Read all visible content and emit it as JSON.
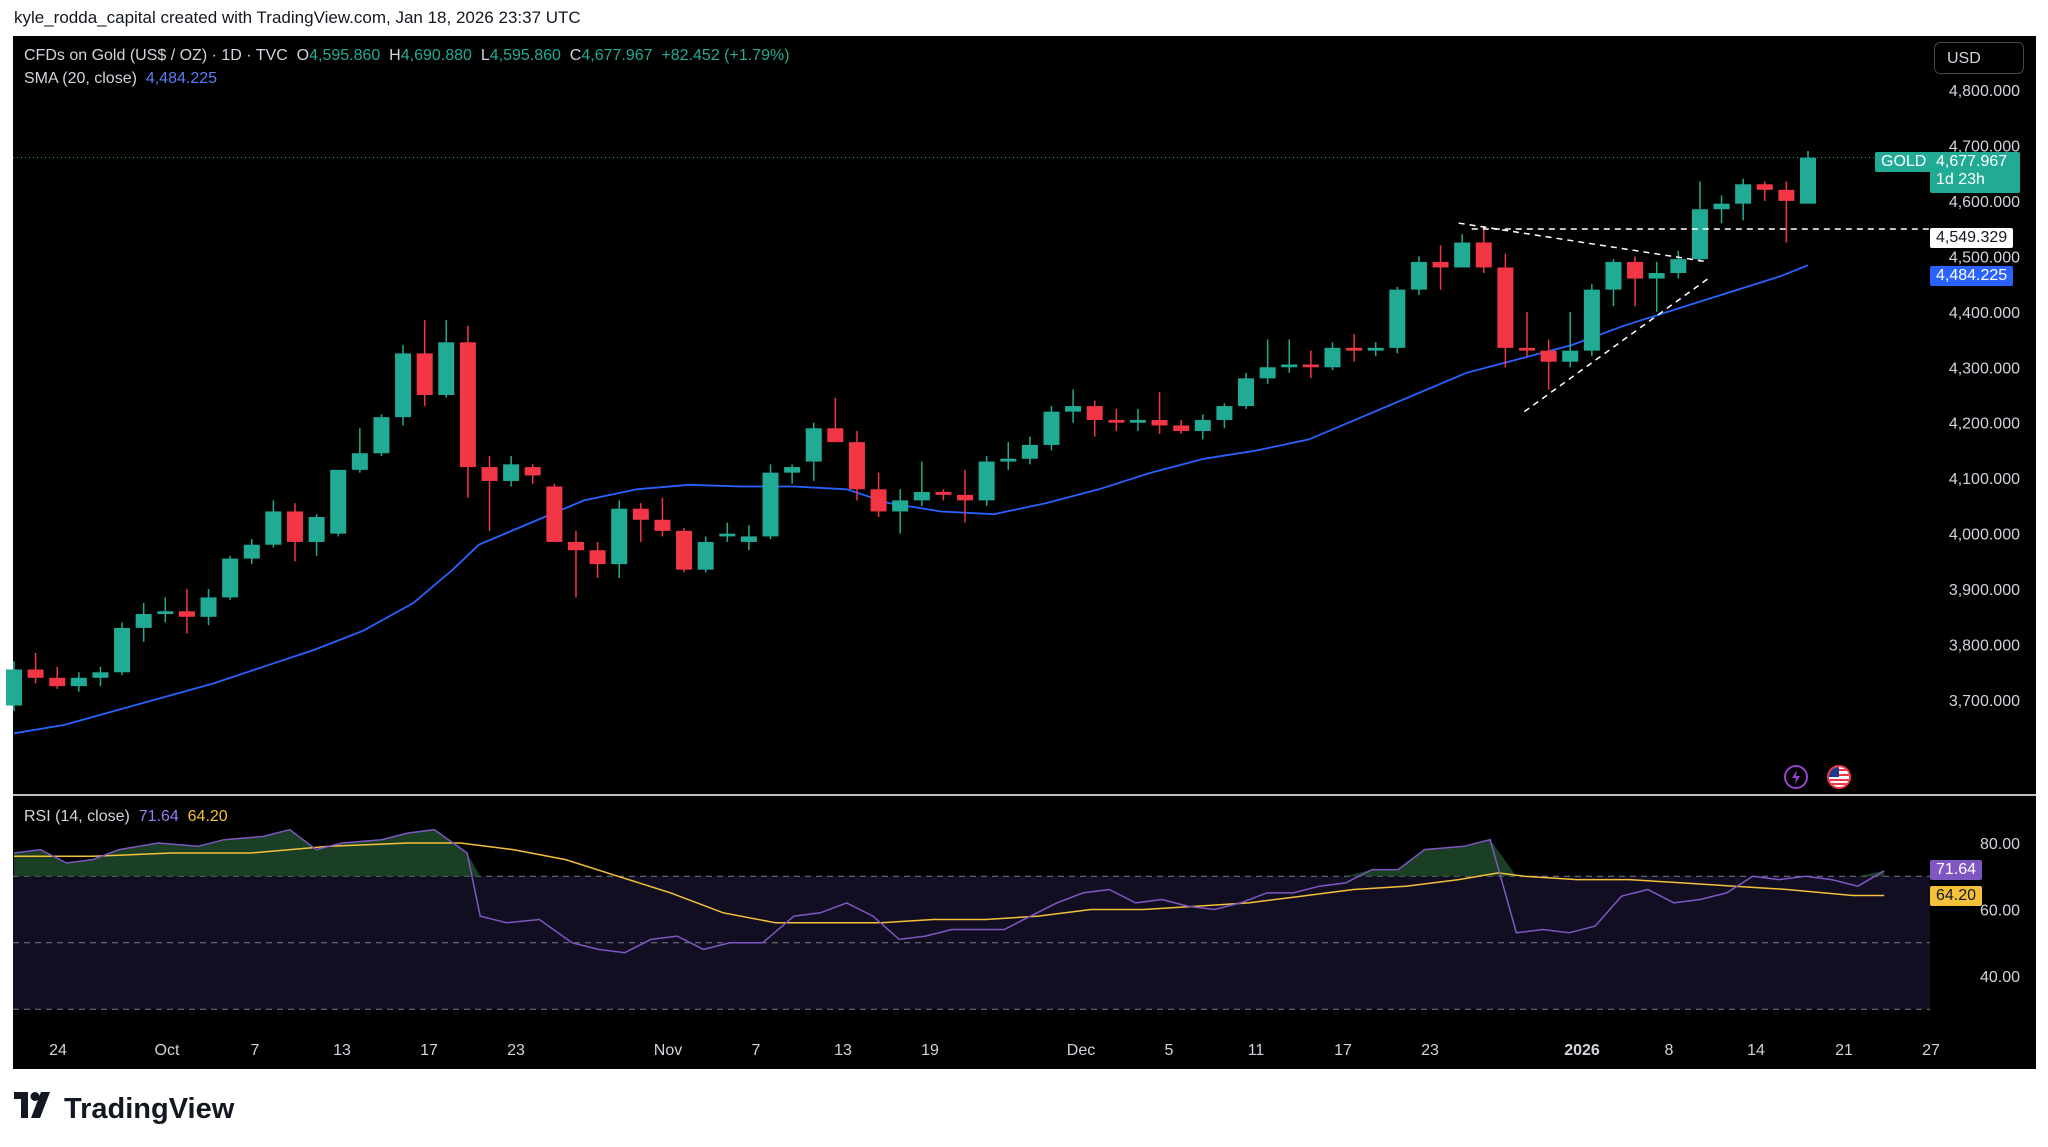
{
  "credit": "kyle_rodda_capital created with TradingView.com, Jan 18, 2026 23:37 UTC",
  "currency_button": "USD",
  "legend": {
    "symbol": "CFDs on Gold (US$ / OZ) · 1D · TVC",
    "o_label": "O",
    "o_value": "4,595.860",
    "h_label": "H",
    "h_value": "4,690.880",
    "l_label": "L",
    "l_value": "4,595.860",
    "c_label": "C",
    "c_value": "4,677.967",
    "change": "+82.452 (+1.79%)",
    "sma_label": "SMA (20, close)",
    "sma_value": "4,484.225",
    "rsi_label": "RSI (14, close)",
    "rsi_value": "71.64",
    "rsi_ma_value": "64.20"
  },
  "tags": {
    "gold_label": "GOLD",
    "gold_price": "4,677.967",
    "countdown": "1d 23h",
    "level_price": "4,549.329",
    "sma_price": "4,484.225",
    "rsi_value": "71.64",
    "rsi_ma_value": "64.20"
  },
  "icons": {
    "flash": "lightning-icon",
    "flag": "us-flag-icon"
  },
  "logo": {
    "wordmark": "TradingView",
    "mark": "tradingview-logo-icon"
  },
  "colors": {
    "up": "#22ab94",
    "down": "#f23645",
    "sma": "#2962ff",
    "rsi": "#7e57c2",
    "rsi_ma": "#f5c03a"
  },
  "chart_data": [
    {
      "type": "candlestick",
      "title": "",
      "price_axis_ticks": [
        "4,800.000",
        "4,700.000",
        "4,600.000",
        "4,500.000",
        "4,400.000",
        "4,300.000",
        "4,200.000",
        "4,100.000",
        "4,000.000",
        "3,900.000",
        "3,800.000",
        "3,700.000"
      ],
      "x_tick_labels": [
        "24",
        "Oct",
        "7",
        "13",
        "17",
        "23",
        "Nov",
        "7",
        "13",
        "19",
        "Dec",
        "5",
        "11",
        "17",
        "23",
        "2026",
        "8",
        "14",
        "21",
        "27"
      ],
      "ylim": [
        3630,
        4830
      ],
      "candles": [
        [
          3690,
          3770,
          3680,
          3755
        ],
        [
          3755,
          3785,
          3730,
          3740
        ],
        [
          3740,
          3760,
          3720,
          3725
        ],
        [
          3725,
          3750,
          3715,
          3740
        ],
        [
          3740,
          3760,
          3725,
          3750
        ],
        [
          3750,
          3840,
          3745,
          3830
        ],
        [
          3830,
          3875,
          3805,
          3855
        ],
        [
          3855,
          3885,
          3840,
          3860
        ],
        [
          3860,
          3900,
          3820,
          3850
        ],
        [
          3850,
          3900,
          3835,
          3885
        ],
        [
          3885,
          3960,
          3880,
          3955
        ],
        [
          3955,
          3990,
          3945,
          3980
        ],
        [
          3980,
          4060,
          3975,
          4040
        ],
        [
          4040,
          4055,
          3950,
          3985
        ],
        [
          3985,
          4035,
          3960,
          4030
        ],
        [
          4000,
          4110,
          3995,
          4115
        ],
        [
          4115,
          4190,
          4110,
          4145
        ],
        [
          4145,
          4215,
          4140,
          4210
        ],
        [
          4210,
          4340,
          4195,
          4325
        ],
        [
          4325,
          4385,
          4230,
          4250
        ],
        [
          4250,
          4385,
          4245,
          4345
        ],
        [
          4345,
          4375,
          4065,
          4120
        ],
        [
          4120,
          4140,
          4005,
          4095
        ],
        [
          4095,
          4140,
          4085,
          4125
        ],
        [
          4120,
          4125,
          4090,
          4105
        ],
        [
          4085,
          4090,
          3985,
          3985
        ],
        [
          3985,
          4005,
          3885,
          3970
        ],
        [
          3970,
          3985,
          3920,
          3945
        ],
        [
          3945,
          4060,
          3920,
          4045
        ],
        [
          4045,
          4055,
          3985,
          4025
        ],
        [
          4025,
          4065,
          3995,
          4005
        ],
        [
          4005,
          4010,
          3930,
          3935
        ],
        [
          3935,
          3995,
          3930,
          3985
        ],
        [
          3995,
          4020,
          3985,
          4000
        ],
        [
          3985,
          4015,
          3970,
          3995
        ],
        [
          3995,
          4125,
          3990,
          4110
        ],
        [
          4110,
          4125,
          4090,
          4120
        ],
        [
          4130,
          4200,
          4095,
          4190
        ],
        [
          4190,
          4245,
          4170,
          4165
        ],
        [
          4165,
          4185,
          4060,
          4080
        ],
        [
          4080,
          4110,
          4030,
          4040
        ],
        [
          4040,
          4080,
          4000,
          4060
        ],
        [
          4060,
          4130,
          4050,
          4075
        ],
        [
          4075,
          4080,
          4060,
          4070
        ],
        [
          4070,
          4115,
          4020,
          4060
        ],
        [
          4060,
          4140,
          4050,
          4130
        ],
        [
          4130,
          4165,
          4115,
          4135
        ],
        [
          4135,
          4175,
          4125,
          4160
        ],
        [
          4160,
          4230,
          4150,
          4220
        ],
        [
          4220,
          4260,
          4200,
          4230
        ],
        [
          4230,
          4240,
          4175,
          4205
        ],
        [
          4205,
          4225,
          4185,
          4200
        ],
        [
          4200,
          4225,
          4185,
          4205
        ],
        [
          4205,
          4255,
          4180,
          4195
        ],
        [
          4195,
          4205,
          4180,
          4185
        ],
        [
          4185,
          4215,
          4170,
          4205
        ],
        [
          4205,
          4235,
          4190,
          4230
        ],
        [
          4230,
          4290,
          4225,
          4280
        ],
        [
          4280,
          4350,
          4270,
          4300
        ],
        [
          4300,
          4350,
          4290,
          4305
        ],
        [
          4305,
          4330,
          4280,
          4300
        ],
        [
          4300,
          4345,
          4295,
          4335
        ],
        [
          4335,
          4360,
          4310,
          4330
        ],
        [
          4330,
          4345,
          4320,
          4335
        ],
        [
          4335,
          4445,
          4325,
          4440
        ],
        [
          4440,
          4500,
          4430,
          4490
        ],
        [
          4490,
          4520,
          4440,
          4480
        ],
        [
          4480,
          4540,
          4480,
          4525
        ],
        [
          4525,
          4555,
          4470,
          4480
        ],
        [
          4480,
          4505,
          4300,
          4335
        ],
        [
          4335,
          4400,
          4320,
          4330
        ],
        [
          4330,
          4350,
          4260,
          4310
        ],
        [
          4310,
          4400,
          4300,
          4330
        ],
        [
          4330,
          4450,
          4320,
          4440
        ],
        [
          4440,
          4495,
          4410,
          4490
        ],
        [
          4490,
          4500,
          4410,
          4460
        ],
        [
          4460,
          4490,
          4400,
          4470
        ],
        [
          4470,
          4510,
          4460,
          4495
        ],
        [
          4495,
          4635,
          4490,
          4585
        ],
        [
          4585,
          4610,
          4560,
          4595
        ],
        [
          4595,
          4640,
          4565,
          4630
        ],
        [
          4630,
          4635,
          4600,
          4620
        ],
        [
          4620,
          4635,
          4525,
          4600
        ],
        [
          4595,
          4690,
          4595,
          4678
        ]
      ],
      "sma": [
        [
          0,
          3640
        ],
        [
          38,
          3655
        ],
        [
          76,
          3680
        ],
        [
          114,
          3705
        ],
        [
          152,
          3730
        ],
        [
          190,
          3760
        ],
        [
          228,
          3790
        ],
        [
          266,
          3825
        ],
        [
          304,
          3875
        ],
        [
          334,
          3935
        ],
        [
          354,
          3980
        ],
        [
          394,
          4020
        ],
        [
          434,
          4060
        ],
        [
          474,
          4080
        ],
        [
          514,
          4088
        ],
        [
          554,
          4085
        ],
        [
          594,
          4085
        ],
        [
          634,
          4080
        ],
        [
          666,
          4055
        ],
        [
          706,
          4040
        ],
        [
          746,
          4035
        ],
        [
          786,
          4055
        ],
        [
          826,
          4080
        ],
        [
          866,
          4110
        ],
        [
          906,
          4135
        ],
        [
          946,
          4150
        ],
        [
          986,
          4170
        ],
        [
          1026,
          4210
        ],
        [
          1066,
          4250
        ],
        [
          1106,
          4290
        ],
        [
          1146,
          4315
        ],
        [
          1186,
          4340
        ],
        [
          1226,
          4375
        ],
        [
          1266,
          4405
        ],
        [
          1306,
          4435
        ],
        [
          1346,
          4465
        ],
        [
          1366,
          4484
        ]
      ],
      "horizontal_level": 4549.329,
      "trendlines": [
        {
          "points": [
            [
              1100,
              4560
            ],
            [
              1290,
              4490
            ]
          ],
          "style": "dashed"
        },
        {
          "points": [
            [
              1150,
              4220
            ],
            [
              1290,
              4460
            ]
          ],
          "style": "dashed"
        }
      ]
    },
    {
      "type": "line",
      "title": "",
      "name": "RSI (14, close)",
      "ylim": [
        30,
        90
      ],
      "y_ticks": [
        "80.00",
        "60.00",
        "40.00"
      ],
      "bands": [
        70,
        50,
        30
      ],
      "rsi": [
        [
          0,
          77
        ],
        [
          20,
          78
        ],
        [
          40,
          74
        ],
        [
          60,
          75
        ],
        [
          80,
          78
        ],
        [
          110,
          80
        ],
        [
          140,
          79
        ],
        [
          160,
          81
        ],
        [
          190,
          82
        ],
        [
          210,
          84
        ],
        [
          230,
          78
        ],
        [
          250,
          80
        ],
        [
          280,
          81
        ],
        [
          300,
          83
        ],
        [
          320,
          84
        ],
        [
          345,
          77
        ],
        [
          355,
          58
        ],
        [
          375,
          56
        ],
        [
          400,
          57
        ],
        [
          425,
          50
        ],
        [
          445,
          48
        ],
        [
          465,
          47
        ],
        [
          485,
          51
        ],
        [
          505,
          52
        ],
        [
          525,
          48
        ],
        [
          545,
          50
        ],
        [
          570,
          50
        ],
        [
          594,
          58
        ],
        [
          614,
          59
        ],
        [
          634,
          62
        ],
        [
          654,
          58
        ],
        [
          674,
          51
        ],
        [
          694,
          52
        ],
        [
          714,
          54
        ],
        [
          734,
          54
        ],
        [
          754,
          54
        ],
        [
          774,
          58
        ],
        [
          794,
          62
        ],
        [
          814,
          65
        ],
        [
          834,
          66
        ],
        [
          854,
          62
        ],
        [
          874,
          63
        ],
        [
          894,
          61
        ],
        [
          914,
          60
        ],
        [
          934,
          62
        ],
        [
          954,
          65
        ],
        [
          974,
          65
        ],
        [
          994,
          67
        ],
        [
          1014,
          68
        ],
        [
          1034,
          72
        ],
        [
          1054,
          72
        ],
        [
          1074,
          78
        ],
        [
          1104,
          79
        ],
        [
          1124,
          81
        ],
        [
          1144,
          53
        ],
        [
          1164,
          54
        ],
        [
          1184,
          53
        ],
        [
          1204,
          55
        ],
        [
          1224,
          64
        ],
        [
          1244,
          66
        ],
        [
          1264,
          62
        ],
        [
          1284,
          63
        ],
        [
          1304,
          65
        ],
        [
          1324,
          70
        ],
        [
          1344,
          69
        ],
        [
          1364,
          70
        ],
        [
          1384,
          69
        ],
        [
          1404,
          67
        ],
        [
          1424,
          71.64
        ]
      ],
      "rsi_ma": [
        [
          0,
          76
        ],
        [
          60,
          76
        ],
        [
          120,
          77
        ],
        [
          180,
          77
        ],
        [
          240,
          79
        ],
        [
          300,
          80
        ],
        [
          340,
          80
        ],
        [
          380,
          78
        ],
        [
          420,
          75
        ],
        [
          460,
          70
        ],
        [
          500,
          65
        ],
        [
          540,
          59
        ],
        [
          580,
          56
        ],
        [
          620,
          56
        ],
        [
          660,
          56
        ],
        [
          700,
          57
        ],
        [
          740,
          57
        ],
        [
          780,
          58
        ],
        [
          820,
          60
        ],
        [
          860,
          60
        ],
        [
          900,
          61
        ],
        [
          940,
          62
        ],
        [
          980,
          64
        ],
        [
          1020,
          66
        ],
        [
          1060,
          67
        ],
        [
          1100,
          69
        ],
        [
          1130,
          71
        ],
        [
          1150,
          70
        ],
        [
          1190,
          69
        ],
        [
          1230,
          69
        ],
        [
          1270,
          68
        ],
        [
          1310,
          67
        ],
        [
          1350,
          66
        ],
        [
          1400,
          64.2
        ],
        [
          1424,
          64.2
        ]
      ]
    }
  ]
}
